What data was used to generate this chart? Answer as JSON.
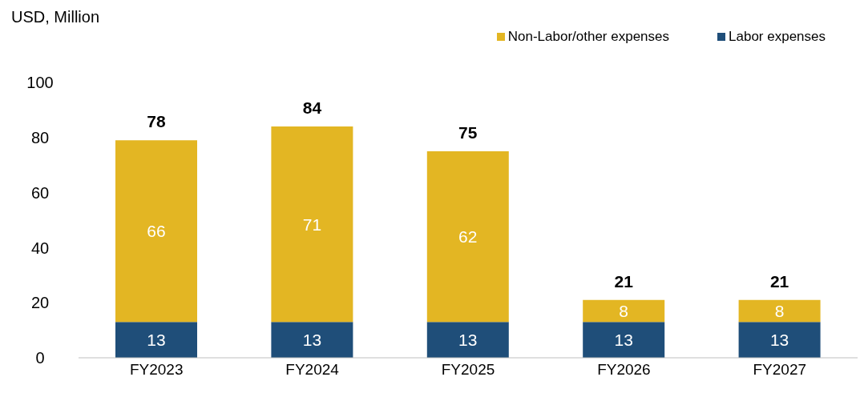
{
  "chart_data": {
    "type": "bar",
    "ylabel": "USD, Million",
    "categories": [
      "FY2023",
      "FY2024",
      "FY2025",
      "FY2026",
      "FY2027"
    ],
    "stacked": true,
    "data_labels": true,
    "series": [
      {
        "name": "Labor expenses",
        "color": "#1f4e79",
        "values": [
          13,
          13,
          13,
          13,
          13
        ]
      },
      {
        "name": "Non-Labor/other expenses",
        "color": "#e3b623",
        "values": [
          66,
          71,
          62,
          8,
          8
        ]
      }
    ],
    "totals": [
      "78",
      "84",
      "75",
      "21",
      "21"
    ],
    "ylim": [
      0,
      100
    ],
    "yticks": [
      0,
      20,
      40,
      60,
      80,
      100
    ],
    "legend": "top right"
  }
}
